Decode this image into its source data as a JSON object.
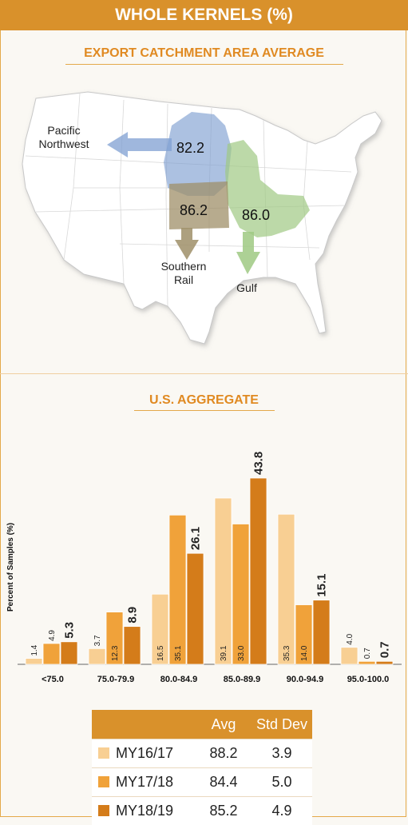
{
  "title": "WHOLE KERNELS (%)",
  "map_section": {
    "title": "EXPORT CATCHMENT AREA AVERAGE",
    "regions": [
      {
        "label_line1": "Pacific",
        "label_line2": "Northwest",
        "value": "82.2",
        "color": "#7f9fd1"
      },
      {
        "label_line1": "Southern",
        "label_line2": "Rail",
        "value": "86.2",
        "color": "#9f8f68"
      },
      {
        "label_line1": "Gulf",
        "label_line2": "",
        "value": "86.0",
        "color": "#9fc983"
      }
    ]
  },
  "chart_section": {
    "title": "U.S. AGGREGATE"
  },
  "chart_data": {
    "type": "bar",
    "ylabel": "Percent of Samples (%)",
    "xlabel": "",
    "categories": [
      "<75.0",
      "75.0-79.9",
      "80.0-84.9",
      "85.0-89.9",
      "90.0-94.9",
      "95.0-100.0"
    ],
    "series": [
      {
        "name": "MY16/17",
        "color": "#f8cf93",
        "values": [
          1.4,
          3.7,
          16.5,
          39.1,
          35.3,
          4.0
        ]
      },
      {
        "name": "MY17/18",
        "color": "#f0a23a",
        "values": [
          4.9,
          12.3,
          35.1,
          33.0,
          14.0,
          0.7
        ]
      },
      {
        "name": "MY18/19",
        "color": "#d47c1a",
        "values": [
          5.3,
          8.9,
          26.1,
          43.8,
          15.1,
          0.7
        ]
      }
    ],
    "value_labels": [
      [
        "1.4",
        "3.7",
        "16.5",
        "39.1",
        "35.3",
        "4.0"
      ],
      [
        "4.9",
        "12.3",
        "35.1",
        "33.0",
        "14.0",
        "0.7"
      ],
      [
        "5.3",
        "8.9",
        "26.1",
        "43.8",
        "15.1",
        "0.7"
      ]
    ],
    "ylim": [
      0,
      48
    ],
    "grid": false
  },
  "summary_table": {
    "header_avg": "Avg",
    "header_std": "Std Dev",
    "rows": [
      {
        "name": "MY16/17",
        "avg": "88.2",
        "std": "3.9",
        "color": "#f8cf93"
      },
      {
        "name": "MY17/18",
        "avg": "84.4",
        "std": "5.0",
        "color": "#f0a23a"
      },
      {
        "name": "MY18/19",
        "avg": "85.2",
        "std": "4.9",
        "color": "#d47c1a"
      }
    ]
  }
}
